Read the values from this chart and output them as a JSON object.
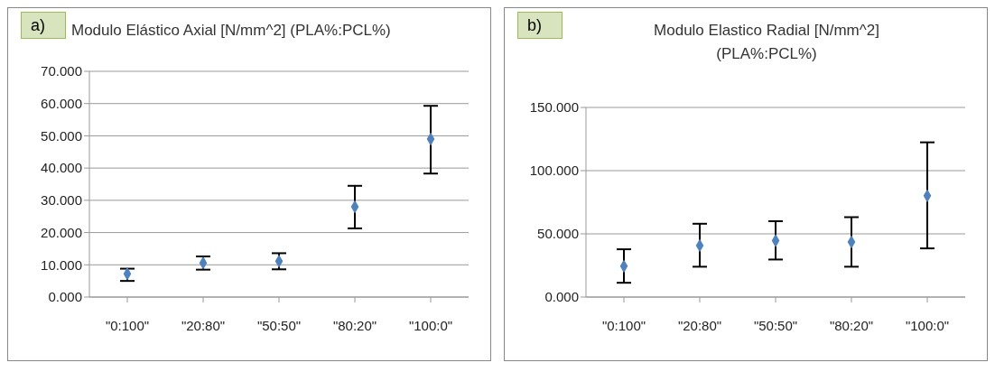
{
  "chart_data": [
    {
      "type": "scatter",
      "title": "Modulo Elástico Axial [N/mm^2] (PLA%:PCL%)",
      "annotations": [
        "a)"
      ],
      "categories": [
        "\"0:100\"",
        "\"20:80\"",
        "\"50:50\"",
        "\"80:20\"",
        "\"100:0\""
      ],
      "series": [
        {
          "color": "#4f81bd",
          "values": [
            7.2,
            10.6,
            11.1,
            28.0,
            49.0
          ],
          "errors": [
            [
              5.0,
              8.8
            ],
            [
              8.5,
              12.6
            ],
            [
              8.6,
              13.6
            ],
            [
              21.3,
              34.5
            ],
            [
              38.3,
              59.3
            ]
          ]
        }
      ],
      "ylim": [
        0,
        70
      ],
      "yticks": [
        {
          "value": 0,
          "label": "0.000"
        },
        {
          "value": 10,
          "label": "10.000"
        },
        {
          "value": 20,
          "label": "20.000"
        },
        {
          "value": 30,
          "label": "30.000"
        },
        {
          "value": 40,
          "label": "40.000"
        },
        {
          "value": 50,
          "label": "50.000"
        },
        {
          "value": 60,
          "label": "60.000"
        },
        {
          "value": 70,
          "label": "70.000"
        }
      ],
      "grid": "y",
      "marker": "diamond",
      "legend": false
    },
    {
      "type": "scatter",
      "title": "Modulo Elastico Radial [N/mm^2]\n(PLA%:PCL%)",
      "annotations": [
        "b)"
      ],
      "categories": [
        "\"0:100\"",
        "\"20:80\"",
        "\"50:50\"",
        "\"80:20\"",
        "\"100:0\""
      ],
      "series": [
        {
          "color": "#4f81bd",
          "values": [
            24.4,
            40.8,
            44.6,
            43.6,
            80.1
          ],
          "errors": [
            [
              11.3,
              37.8
            ],
            [
              24,
              58
            ],
            [
              29.7,
              60
            ],
            [
              24,
              63.2
            ],
            [
              38.5,
              122.4
            ]
          ]
        }
      ],
      "ylim": [
        0,
        150
      ],
      "yticks": [
        {
          "value": 0,
          "label": "0.000"
        },
        {
          "value": 50,
          "label": "50.000"
        },
        {
          "value": 100,
          "label": "100.000"
        },
        {
          "value": 150,
          "label": "150.000"
        }
      ],
      "grid": "y",
      "marker": "diamond",
      "legend": false
    }
  ]
}
